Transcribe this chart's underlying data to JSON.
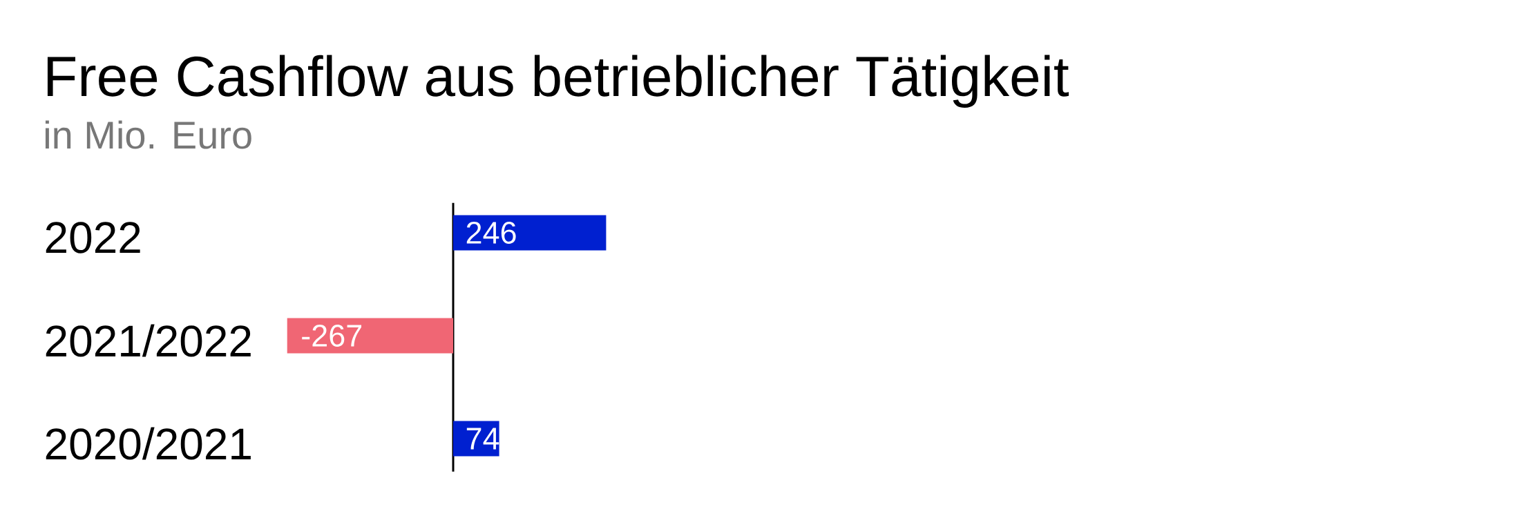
{
  "chart_data": {
    "type": "bar",
    "orientation": "horizontal",
    "title": "Free Cashflow aus betrieblicher Tätigkeit",
    "subtitle": "in Mio. Euro",
    "categories": [
      "2022",
      "2021/2022",
      "2020/2021"
    ],
    "values": [
      246,
      -267,
      74
    ],
    "colors": [
      "#0020d0",
      "#f06674",
      "#0020d0"
    ],
    "data_labels": true
  }
}
